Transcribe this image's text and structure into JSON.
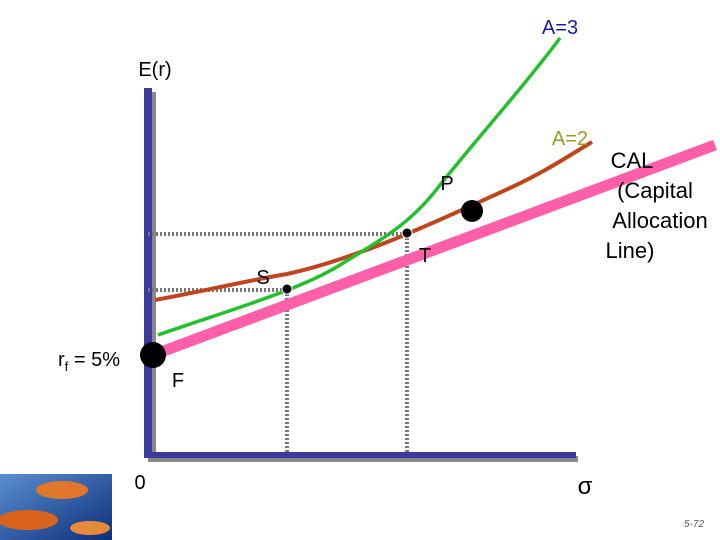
{
  "labels": {
    "a3": "A=3",
    "y_axis": "E(r)",
    "a2": "A=2",
    "cal": [
      "CAL",
      "(Capital",
      "Allocation",
      "Line)"
    ],
    "p": "P",
    "t": "T",
    "s": "S",
    "rf": {
      "base": "r",
      "sub": "f",
      "rest": " = 5%"
    },
    "f": "F",
    "origin": "0",
    "x_axis": "σ",
    "page": "5-72"
  }
}
